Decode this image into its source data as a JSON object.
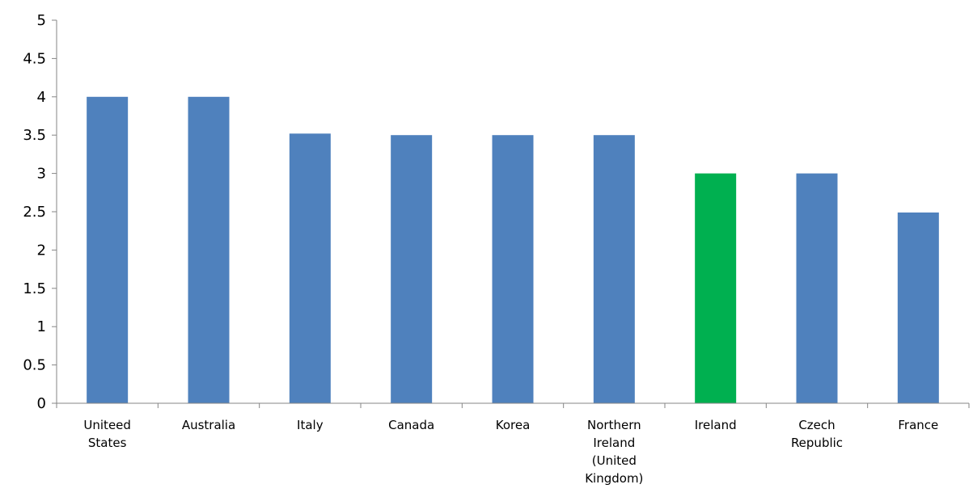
{
  "chart_data": {
    "type": "bar",
    "title": "",
    "xlabel": "",
    "ylabel": "",
    "ylim": [
      0,
      5
    ],
    "yticks": [
      "0",
      "0.5",
      "1",
      "1.5",
      "2",
      "2.5",
      "3",
      "3.5",
      "4",
      "4.5",
      "5"
    ],
    "grid": false,
    "legend": "none",
    "categories": [
      [
        "Uniteed",
        "States"
      ],
      [
        "Australia"
      ],
      [
        "Italy"
      ],
      [
        "Canada"
      ],
      [
        "Korea"
      ],
      [
        "Northern",
        "Ireland",
        "(United",
        "Kingdom)"
      ],
      [
        "Ireland"
      ],
      [
        "Czech",
        "Republic"
      ],
      [
        "France"
      ]
    ],
    "values": [
      4.0,
      4.0,
      3.52,
      3.5,
      3.5,
      3.5,
      3.0,
      3.0,
      2.49
    ],
    "highlight_index": 6,
    "colors": {
      "bar": "#4f81bd",
      "highlight": "#00b050",
      "axis": "#868686",
      "text": "#000000"
    }
  }
}
